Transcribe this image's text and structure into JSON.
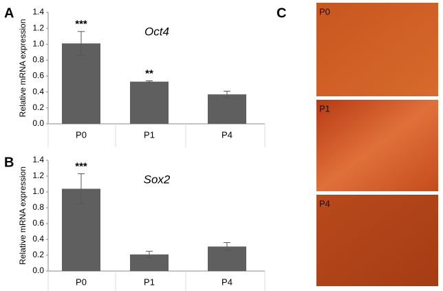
{
  "panels": [
    "A",
    "B",
    "C"
  ],
  "chart_data": [
    {
      "type": "bar",
      "title": "Oct4",
      "y_label": "Relative mRNA expression",
      "categories": [
        "P0",
        "P1",
        "P4"
      ],
      "values": [
        1.01,
        0.53,
        0.37
      ],
      "errors": [
        0.15,
        0.01,
        0.04
      ],
      "significance": [
        "***",
        "**",
        null
      ],
      "color": "#5f5f5f",
      "ylim": [
        0,
        1.4
      ],
      "yticks": [
        {
          "value": 0,
          "label": "0.0"
        },
        0.2,
        0.4,
        0.6,
        0.8,
        {
          "value": 1,
          "label": "1.0"
        },
        1.2,
        1.4
      ]
    },
    {
      "type": "bar",
      "title": "Sox2",
      "y_label": "Relative mRNA expression",
      "categories": [
        "P0",
        "P1",
        "P4"
      ],
      "values": [
        1.04,
        0.21,
        0.31
      ],
      "errors": [
        0.19,
        0.04,
        0.05
      ],
      "significance": [
        "***",
        null,
        null
      ],
      "color": "#5f5f5f",
      "ylim": [
        0,
        1.4
      ],
      "yticks": [
        {
          "value": 0,
          "label": "0.0"
        },
        0.2,
        0.4,
        0.6,
        0.8,
        {
          "value": 1,
          "label": "1.0"
        },
        1.2,
        1.4
      ]
    }
  ],
  "images": [
    {
      "label": "P0"
    },
    {
      "label": "P1"
    },
    {
      "label": "P4"
    }
  ]
}
